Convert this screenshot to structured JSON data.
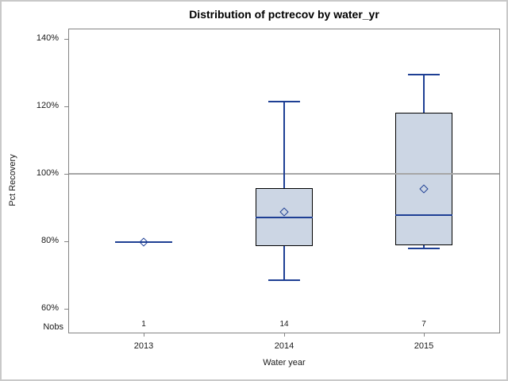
{
  "figure": {
    "border_color": "#c9c9c9",
    "background": "#ffffff"
  },
  "chart_data": {
    "type": "boxplot",
    "title": "Distribution of pctrecov by water_yr",
    "xlabel": "Water year",
    "ylabel": "Pct Recovery",
    "categories": [
      "2013",
      "2014",
      "2015"
    ],
    "nobs_label": "Nobs",
    "nobs": [
      "1",
      "14",
      "7"
    ],
    "y_ticks": [
      "60%",
      "80%",
      "100%",
      "120%",
      "140%"
    ],
    "y_tick_values": [
      60,
      80,
      100,
      120,
      140
    ],
    "ylim": [
      52.7,
      143.1
    ],
    "reference_line": 100,
    "grid": "reference line at 100% only",
    "legend": "none",
    "series": [
      {
        "category": "2013",
        "n": 1,
        "min": 79.7,
        "q1": 79.7,
        "median": 79.7,
        "q3": 79.7,
        "max": 79.7,
        "mean": 79.7
      },
      {
        "category": "2014",
        "n": 14,
        "min": 68.5,
        "q1": 78.5,
        "median": 87.1,
        "q3": 95.7,
        "max": 121.4,
        "mean": 88.6
      },
      {
        "category": "2015",
        "n": 7,
        "min": 77.9,
        "q1": 78.8,
        "median": 87.7,
        "q3": 118.1,
        "max": 129.4,
        "mean": 95.4
      }
    ],
    "colors": {
      "box_fill": "#ccd6e4",
      "box_border": "#000000",
      "line": "#1e3f94",
      "reference_line": "#a6a6a6",
      "frame": "#848484",
      "text": "#1a1a1a",
      "title_text": "#000000"
    }
  }
}
